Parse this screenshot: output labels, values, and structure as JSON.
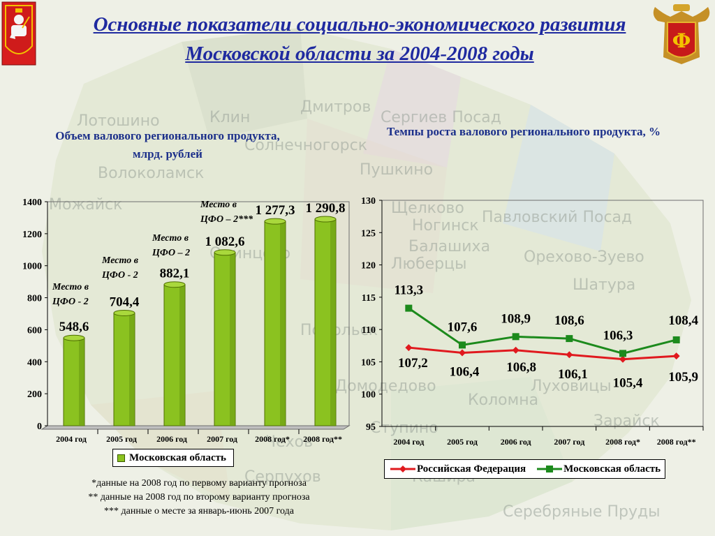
{
  "title": "Основные показатели социально-экономического развития Московской области за 2004-2008 годы",
  "map_labels": [
    "Лотошино",
    "Клин",
    "Дмитров",
    "Сергиев Посад",
    "Солнечногорск",
    "Волоколамск",
    "Пушкино",
    "Щелково",
    "Павловский Посад",
    "Ногинск",
    "Балашиха",
    "Люберцы",
    "Орехово-Зуево",
    "Шатура",
    "Можайск",
    "Одинцово",
    "Коломна",
    "Ступино",
    "Серпухов",
    "Кашира",
    "Луховицы",
    "Зарайск",
    "Серебряные Пруды",
    "Домодедово",
    "Чехов",
    "Подольск"
  ],
  "colors": {
    "title": "#1f2aa0",
    "subtitle": "#1b2f8a",
    "bar_fill": "#8bc220",
    "russia_line": "#e0191e",
    "moscow_region_line": "#1c8a1c"
  },
  "chart_data": [
    {
      "type": "bar",
      "title": "Объем валового регионального продукта, млрд. рублей",
      "categories": [
        "2004 год",
        "2005 год",
        "2006 год",
        "2007 год",
        "2008 год*",
        "2008 год**"
      ],
      "series": [
        {
          "name": "Московская область",
          "values": [
            548.6,
            704.4,
            882.1,
            1082.6,
            1277.3,
            1290.8
          ]
        }
      ],
      "value_labels": [
        "548,6",
        "704,4",
        "882,1",
        "1 082,6",
        "1 277,3",
        "1 290,8"
      ],
      "rank_annotations": [
        "Место в ЦФО - 2",
        "Место в ЦФО - 2",
        "Место в ЦФО – 2",
        "Место в ЦФО – 2***",
        "",
        ""
      ],
      "ylim": [
        0,
        1400
      ],
      "yticks": [
        "0",
        "200",
        "400",
        "600",
        "800",
        "1000",
        "1200",
        "1400"
      ],
      "legend": "bottom"
    },
    {
      "type": "line",
      "title": "Темпы роста валового регионального продукта, %",
      "categories": [
        "2004 год",
        "2005 год",
        "2006 год",
        "2007 год",
        "2008 год*",
        "2008 год**"
      ],
      "series": [
        {
          "name": "Российская Федерация",
          "values": [
            107.2,
            106.4,
            106.8,
            106.1,
            105.4,
            105.9
          ],
          "labels": [
            "107,2",
            "106,4",
            "106,8",
            "106,1",
            "105,4",
            "105,9"
          ]
        },
        {
          "name": "Московская область",
          "values": [
            113.3,
            107.6,
            108.9,
            108.6,
            106.3,
            108.4
          ],
          "labels": [
            "113,3",
            "107,6",
            "108,9",
            "108,6",
            "106,3",
            "108,4"
          ]
        }
      ],
      "ylim": [
        95,
        130
      ],
      "yticks": [
        "95",
        "100",
        "105",
        "110",
        "115",
        "120",
        "125",
        "130"
      ],
      "legend": "bottom"
    }
  ],
  "footnotes": [
    "*данные на 2008 год по первому варианту прогноза",
    "** данные на 2008 год по второму варианту прогноза",
    "*** данные о месте за январь-июнь 2007 года"
  ]
}
